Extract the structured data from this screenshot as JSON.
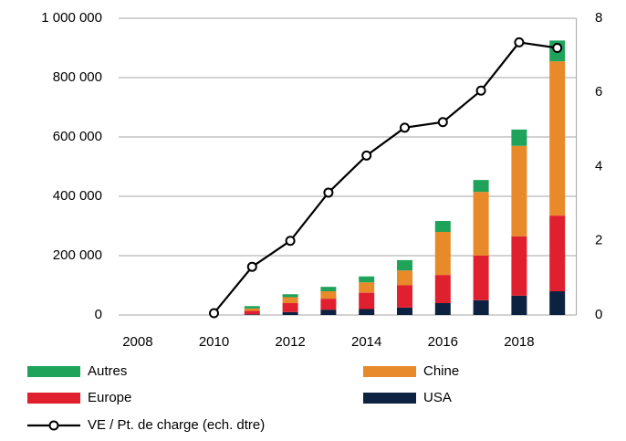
{
  "chart_data": {
    "type": "bar_line",
    "categories": [
      "2008",
      null,
      "2010",
      null,
      "2012",
      null,
      "2014",
      null,
      "2016",
      null,
      "2018",
      null
    ],
    "series": [
      {
        "name": "Autres",
        "color": "#1fa35a",
        "values": [
          null,
          null,
          null,
          8000,
          10000,
          15000,
          20000,
          35000,
          37000,
          40000,
          55000,
          70000
        ]
      },
      {
        "name": "Chine",
        "color": "#e8892a",
        "values": [
          null,
          null,
          null,
          8000,
          20000,
          25000,
          35000,
          50000,
          145000,
          215000,
          305000,
          520000
        ]
      },
      {
        "name": "Europe",
        "color": "#e0202e",
        "values": [
          null,
          null,
          null,
          12000,
          30000,
          37000,
          55000,
          75000,
          95000,
          150000,
          200000,
          255000
        ]
      },
      {
        "name": "USA",
        "color": "#0d2240",
        "values": [
          null,
          null,
          null,
          2000,
          10000,
          18000,
          20000,
          25000,
          40000,
          50000,
          65000,
          80000
        ]
      },
      {
        "name": "VE / Pt. de charge (ech. dtre)",
        "color": "#000000",
        "type": "line",
        "axis": "y2",
        "values": [
          null,
          null,
          0.05,
          1.3,
          2.0,
          3.3,
          4.3,
          5.05,
          5.2,
          6.05,
          7.35,
          7.2
        ]
      }
    ],
    "ylim": [
      0,
      1000000
    ],
    "yticks": [
      0,
      {
        "value": 200000,
        "label": "200 000"
      },
      {
        "value": 400000,
        "label": "400 000"
      },
      {
        "value": 600000,
        "label": "600 000"
      },
      {
        "value": 800000,
        "label": "800 000"
      },
      {
        "value": 1000000,
        "label": "1 000 000"
      }
    ],
    "y2lim": [
      0,
      8
    ],
    "y2ticks": [
      0,
      2,
      4,
      6,
      8
    ],
    "grid": true,
    "legend": "bottom"
  }
}
